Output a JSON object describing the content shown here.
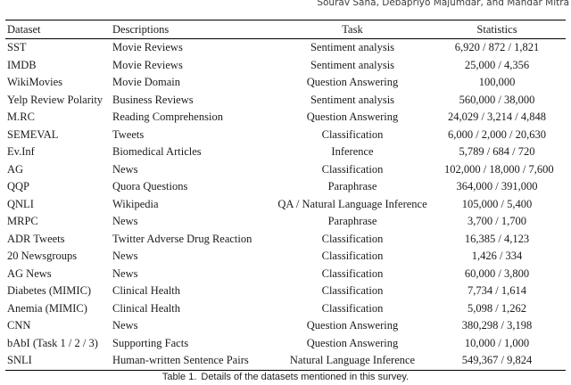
{
  "running_header": {
    "authors": "Sourav Saha, Debapriyo Majumdar, and Mandar Mitra"
  },
  "table": {
    "columns": [
      "Dataset",
      "Descriptions",
      "Task",
      "Statistics"
    ],
    "rows": [
      {
        "dataset": "SST",
        "description": "Movie Reviews",
        "task": "Sentiment analysis",
        "statistics": "6,920 / 872 / 1,821"
      },
      {
        "dataset": "IMDB",
        "description": "Movie Reviews",
        "task": "Sentiment analysis",
        "statistics": "25,000 / 4,356"
      },
      {
        "dataset": "WikiMovies",
        "description": "Movie Domain",
        "task": "Question Answering",
        "statistics": "100,000"
      },
      {
        "dataset": "Yelp Review Polarity",
        "description": "Business Reviews",
        "task": "Sentiment analysis",
        "statistics": "560,000 / 38,000"
      },
      {
        "dataset": "M.RC",
        "description": "Reading Comprehension",
        "task": "Question Answering",
        "statistics": "24,029 / 3,214 / 4,848"
      },
      {
        "dataset": "SEMEVAL",
        "description": "Tweets",
        "task": "Classification",
        "statistics": "6,000 / 2,000 / 20,630"
      },
      {
        "dataset": "Ev.Inf",
        "description": "Biomedical Articles",
        "task": "Inference",
        "statistics": "5,789 / 684 / 720"
      },
      {
        "dataset": "AG",
        "description": "News",
        "task": "Classification",
        "statistics": "102,000 / 18,000 / 7,600"
      },
      {
        "dataset": "QQP",
        "description": "Quora Questions",
        "task": "Paraphrase",
        "statistics": "364,000 / 391,000"
      },
      {
        "dataset": "QNLI",
        "description": "Wikipedia",
        "task": "QA / Natural Language Inference",
        "statistics": "105,000 / 5,400"
      },
      {
        "dataset": "MRPC",
        "description": "News",
        "task": "Paraphrase",
        "statistics": "3,700 / 1,700"
      },
      {
        "dataset": "ADR Tweets",
        "description": "Twitter Adverse Drug Reaction",
        "task": "Classification",
        "statistics": "16,385 / 4,123"
      },
      {
        "dataset": "20 Newsgroups",
        "description": "News",
        "task": "Classification",
        "statistics": "1,426 / 334"
      },
      {
        "dataset": "AG News",
        "description": "News",
        "task": "Classification",
        "statistics": "60,000 / 3,800"
      },
      {
        "dataset": "Diabetes (MIMIC)",
        "description": "Clinical Health",
        "task": "Classification",
        "statistics": "7,734 / 1,614"
      },
      {
        "dataset": "Anemia (MIMIC)",
        "description": "Clinical Health",
        "task": "Classification",
        "statistics": "5,098 / 1,262"
      },
      {
        "dataset": "CNN",
        "description": "News",
        "task": "Question Answering",
        "statistics": "380,298 / 3,198"
      },
      {
        "dataset": "bAbI (Task 1 / 2 / 3)",
        "description": "Supporting Facts",
        "task": "Question Answering",
        "statistics": "10,000 / 1,000"
      },
      {
        "dataset": "SNLI",
        "description": "Human-written Sentence Pairs",
        "task": "Natural Language Inference",
        "statistics": "549,367 / 9,824"
      }
    ]
  },
  "caption": {
    "label": "Table 1.",
    "text": "Details of the datasets mentioned in this survey."
  }
}
